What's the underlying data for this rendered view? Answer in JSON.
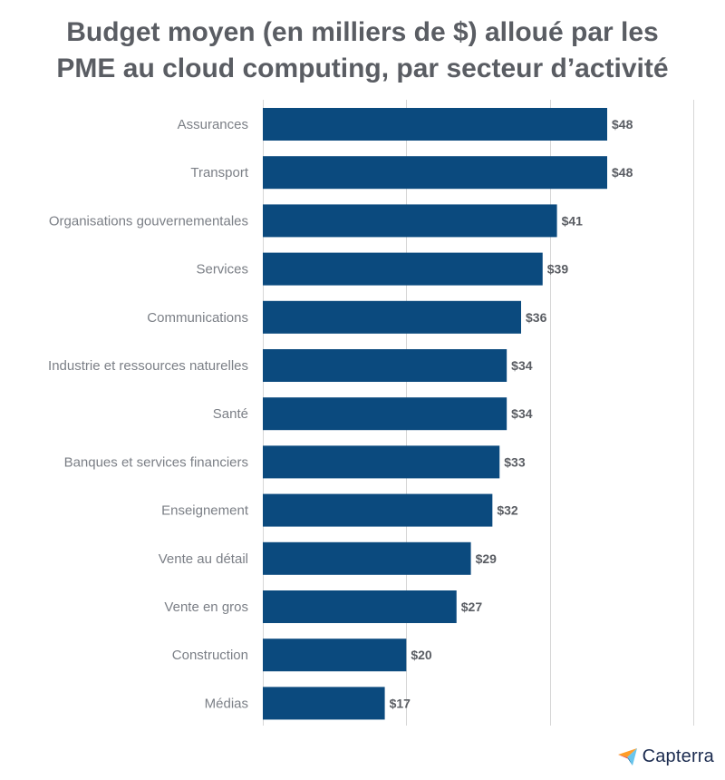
{
  "chart_data": {
    "type": "bar",
    "orientation": "horizontal",
    "title_lines": [
      "Budget moyen (en milliers de $) alloué par les",
      "PME au cloud computing, par secteur d’activité"
    ],
    "categories": [
      "Assurances",
      "Transport",
      "Organisations gouvernementales",
      "Services",
      "Communications",
      "Industrie et ressources naturelles",
      "Santé",
      "Banques et services financiers",
      "Enseignement",
      "Vente au détail",
      "Vente en gros",
      "Construction",
      "Médias"
    ],
    "values": [
      48,
      48,
      41,
      39,
      36,
      34,
      34,
      33,
      32,
      29,
      27,
      20,
      17
    ],
    "value_labels": [
      "$48",
      "$48",
      "$41",
      "$39",
      "$36",
      "$34",
      "$34",
      "$33",
      "$32",
      "$29",
      "$27",
      "$20",
      "$17"
    ],
    "xlim": [
      0,
      60
    ],
    "grid": true,
    "bar_color": "#0b4a7e"
  },
  "brand": {
    "name": "Capterra",
    "logo_icon": "capterra-arrow-icon"
  }
}
